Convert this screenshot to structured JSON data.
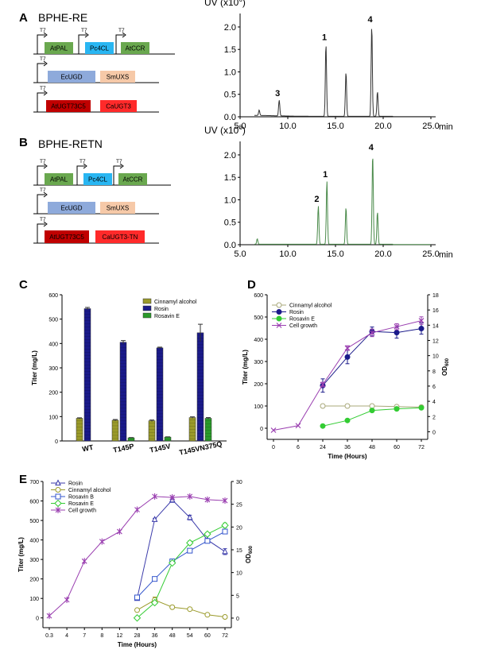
{
  "panels": {
    "A": {
      "letter": "A",
      "construct": "BPHE-RE",
      "promoter": "T7",
      "operons": [
        [
          "AtPAL",
          "Pc4CL",
          "AtCCR"
        ],
        [
          "EcUGD",
          "SmUXS"
        ],
        [
          "AtUGT73C5",
          "CaUGT3"
        ]
      ]
    },
    "B": {
      "letter": "B",
      "construct": "BPHE-RETN",
      "promoter": "T7",
      "operons": [
        [
          "AtPAL",
          "Pc4CL",
          "AtCCR"
        ],
        [
          "EcUGD",
          "SmUXS"
        ],
        [
          "AtUGT73C5",
          "CaUGT3-TN"
        ]
      ]
    },
    "C": {
      "letter": "C"
    },
    "D": {
      "letter": "D"
    },
    "E": {
      "letter": "E"
    }
  },
  "colors": {
    "gene_green": "#6aa84f",
    "gene_cyan": "#29b6f2",
    "gene_blue": "#8eaadb",
    "gene_peach": "#f6c9a8",
    "gene_darkred": "#c00000",
    "gene_red": "#ff2a2a",
    "trace_A": "#333333",
    "trace_B": "#4a8a4a",
    "cinnamyl": "#9a9a2a",
    "rosin": "#1a1a8a",
    "rosavinE": "#2a9a2a",
    "cell": "#9a3fb0"
  },
  "chart_data": [
    {
      "id": "A-chromatogram",
      "type": "line",
      "title": "",
      "ylabel_prefix": "UV (x10",
      "ylabel_exp": "6",
      "ylabel_suffix": ")",
      "xlabel": "min",
      "xlim": [
        5.0,
        25.5
      ],
      "ylim": [
        0,
        2.3
      ],
      "xticks": [
        5.0,
        10.0,
        15.0,
        20.0,
        25.0
      ],
      "xticklabels": [
        "5.0",
        "10.0",
        "15.0",
        "20.0",
        "25.0"
      ],
      "yticks": [
        0.0,
        0.5,
        1.0,
        1.5,
        2.0
      ],
      "yticklabels": [
        "0.0",
        "0.5",
        "1.0",
        "1.5",
        "2.0"
      ],
      "baseline": 0.05,
      "peaks": [
        {
          "x": 7.0,
          "h": 0.12,
          "label": ""
        },
        {
          "x": 9.1,
          "h": 0.35,
          "label": "3"
        },
        {
          "x": 14.0,
          "h": 1.6,
          "label": "1"
        },
        {
          "x": 16.1,
          "h": 0.98,
          "label": ""
        },
        {
          "x": 18.8,
          "h": 2.0,
          "label": "4"
        },
        {
          "x": 19.4,
          "h": 0.55,
          "label": ""
        }
      ]
    },
    {
      "id": "B-chromatogram",
      "type": "line",
      "title": "",
      "ylabel_prefix": "UV (x10",
      "ylabel_exp": "6",
      "ylabel_suffix": ")",
      "xlabel": "min",
      "xlim": [
        5.0,
        25.5
      ],
      "ylim": [
        0,
        2.3
      ],
      "xticks": [
        5.0,
        10.0,
        15.0,
        20.0,
        25.0
      ],
      "xticklabels": [
        "5.0",
        "10.0",
        "15.0",
        "20.0",
        "25.0"
      ],
      "yticks": [
        0.0,
        0.5,
        1.0,
        1.5,
        2.0
      ],
      "yticklabels": [
        "0.0",
        "0.5",
        "1.0",
        "1.5",
        "2.0"
      ],
      "baseline": 0.0,
      "peaks": [
        {
          "x": 6.8,
          "h": 0.12,
          "label": ""
        },
        {
          "x": 13.2,
          "h": 0.85,
          "label": "2"
        },
        {
          "x": 14.1,
          "h": 1.4,
          "label": "1"
        },
        {
          "x": 16.1,
          "h": 0.82,
          "label": ""
        },
        {
          "x": 18.9,
          "h": 2.0,
          "label": "4"
        },
        {
          "x": 19.4,
          "h": 0.72,
          "label": ""
        }
      ]
    },
    {
      "id": "C-bar",
      "type": "bar",
      "ylabel": "Titer (mg/L)",
      "ylim": [
        0,
        600
      ],
      "yticks": [
        0,
        100,
        200,
        300,
        400,
        500,
        600
      ],
      "categories": [
        "WT",
        "T145P",
        "T145V",
        "T145VN375Q"
      ],
      "series": [
        {
          "name": "Cinnamyl alcohol",
          "values": [
            93,
            85,
            83,
            96
          ],
          "errors": [
            2,
            3,
            3,
            3
          ]
        },
        {
          "name": "Rosin",
          "values": [
            543,
            405,
            382,
            444
          ],
          "errors": [
            5,
            7,
            3,
            35
          ]
        },
        {
          "name": "Rosavin E",
          "values": [
            0,
            13,
            16,
            93
          ],
          "errors": [
            0,
            1,
            1,
            3
          ]
        }
      ]
    },
    {
      "id": "D-line",
      "type": "line",
      "xlabel": "Time (Hours)",
      "ylabel": "Titer (mg/L)",
      "y2label_main": "OD",
      "y2label_sub": "600",
      "xticks": [
        0,
        6,
        24,
        36,
        48,
        60,
        72
      ],
      "xticklabels": [
        "0",
        "6",
        "24",
        "36",
        "48",
        "60",
        "72"
      ],
      "ylim": [
        -50,
        600
      ],
      "yticks": [
        0,
        100,
        200,
        300,
        400,
        500,
        600
      ],
      "y2lim": [
        -1,
        18
      ],
      "y2ticks": [
        0,
        2,
        4,
        6,
        8,
        10,
        12,
        14,
        16,
        18
      ],
      "series": [
        {
          "name": "Cinnamyl alcohol",
          "axis": "left",
          "marker": "open-circle",
          "x": [
            24,
            36,
            48,
            60,
            72
          ],
          "values": [
            100,
            100,
            100,
            97,
            95
          ],
          "errors": [
            0,
            0,
            0,
            0,
            0
          ]
        },
        {
          "name": "Rosin",
          "axis": "left",
          "marker": "circle",
          "x": [
            24,
            36,
            48,
            60,
            72
          ],
          "values": [
            192,
            320,
            435,
            430,
            448
          ],
          "errors": [
            30,
            30,
            20,
            25,
            25
          ]
        },
        {
          "name": "Rosavin E",
          "axis": "left",
          "marker": "circle",
          "x": [
            24,
            36,
            48,
            60,
            72
          ],
          "values": [
            10,
            35,
            80,
            87,
            92
          ],
          "errors": [
            0,
            0,
            0,
            0,
            0
          ]
        },
        {
          "name": "Cell growth",
          "axis": "right",
          "marker": "x",
          "x": [
            0,
            6,
            24,
            36,
            48,
            60,
            72
          ],
          "values": [
            0.2,
            0.8,
            6.2,
            11.0,
            13.0,
            13.8,
            14.6
          ],
          "errors": [
            0,
            0,
            0.3,
            0.3,
            0.5,
            0.4,
            0.5
          ]
        }
      ]
    },
    {
      "id": "E-line",
      "type": "line",
      "xlabel": "Time (Hours)",
      "ylabel": "Titer (mg/L)",
      "y2label_main": "OD",
      "y2label_sub": "600",
      "xticks": [
        0.3,
        4,
        7,
        8,
        12,
        28,
        36,
        48,
        54,
        60,
        72
      ],
      "xticklabels": [
        "0.3",
        "4",
        "7",
        "8",
        "12",
        "28",
        "36",
        "48",
        "54",
        "60",
        "72"
      ],
      "ylim": [
        -50,
        700
      ],
      "yticks": [
        0,
        100,
        200,
        300,
        400,
        500,
        600,
        700
      ],
      "y2lim": [
        -2.1,
        30
      ],
      "y2ticks": [
        0,
        5,
        10,
        15,
        20,
        25,
        30
      ],
      "series": [
        {
          "name": "Rosin",
          "axis": "left",
          "marker": "triangle",
          "x": [
            28,
            36,
            48,
            54,
            60,
            72
          ],
          "values": [
            100,
            505,
            605,
            515,
            400,
            340
          ],
          "errors": [
            6,
            6,
            12,
            12,
            6,
            15
          ]
        },
        {
          "name": "Cinnamyl alcohol",
          "axis": "left",
          "marker": "open-circle",
          "x": [
            28,
            36,
            48,
            54,
            60,
            72
          ],
          "values": [
            40,
            92,
            55,
            45,
            16,
            5
          ],
          "errors": [
            3,
            15,
            4,
            3,
            2,
            1
          ]
        },
        {
          "name": "Rosavin B",
          "axis": "left",
          "marker": "square",
          "x": [
            28,
            36,
            48,
            54,
            60,
            72
          ],
          "values": [
            105,
            200,
            290,
            345,
            395,
            443
          ],
          "errors": [
            5,
            5,
            10,
            8,
            8,
            10
          ]
        },
        {
          "name": "Rosavin E",
          "axis": "left",
          "marker": "diamond",
          "x": [
            28,
            36,
            48,
            54,
            60,
            72
          ],
          "values": [
            0,
            78,
            282,
            385,
            430,
            475
          ],
          "errors": [
            3,
            5,
            8,
            10,
            8,
            12
          ]
        },
        {
          "name": "Cell growth",
          "axis": "right",
          "marker": "star",
          "x": [
            0.3,
            4,
            7,
            8,
            12,
            28,
            36,
            48,
            54,
            60,
            72
          ],
          "values": [
            0.5,
            4.0,
            12.5,
            16.8,
            19.0,
            23.8,
            26.7,
            26.5,
            26.7,
            26.0,
            25.8
          ],
          "errors": [
            0,
            0,
            0,
            0,
            0,
            0,
            0,
            0,
            0,
            0,
            0
          ]
        }
      ]
    }
  ]
}
